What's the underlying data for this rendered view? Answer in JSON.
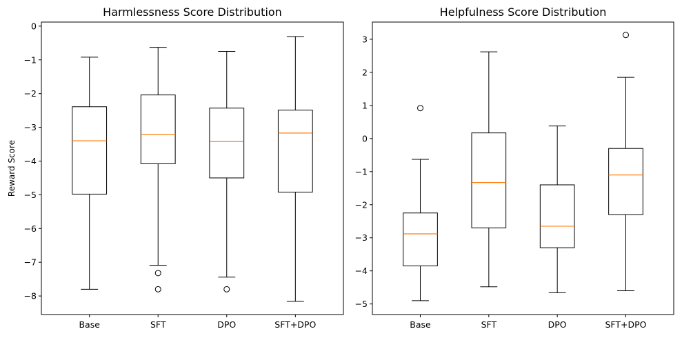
{
  "chart_data": [
    {
      "type": "box",
      "title": "Harmlessness Score Distribution",
      "xlabel": "",
      "ylabel": "Reward Score",
      "ylim": [
        -8.55,
        0.12
      ],
      "yticks": [
        0,
        -1,
        -2,
        -3,
        -4,
        -5,
        -6,
        -7,
        -8
      ],
      "ytick_labels": [
        "0",
        "−1",
        "−2",
        "−3",
        "−4",
        "−5",
        "−6",
        "−7",
        "−8"
      ],
      "categories": [
        "Base",
        "SFT",
        "DPO",
        "SFT+DPO"
      ],
      "boxes": [
        {
          "whisker_low": -7.8,
          "q1": -4.98,
          "median": -3.4,
          "q3": -2.39,
          "whisker_high": -0.92,
          "outliers": []
        },
        {
          "whisker_low": -7.09,
          "q1": -4.08,
          "median": -3.21,
          "q3": -2.04,
          "whisker_high": -0.63,
          "outliers": [
            -7.32,
            -7.8
          ]
        },
        {
          "whisker_low": -7.44,
          "q1": -4.5,
          "median": -3.42,
          "q3": -2.43,
          "whisker_high": -0.75,
          "outliers": [
            -7.8
          ]
        },
        {
          "whisker_low": -8.16,
          "q1": -4.92,
          "median": -3.17,
          "q3": -2.49,
          "whisker_high": -0.31,
          "outliers": []
        }
      ],
      "grid": false
    },
    {
      "type": "box",
      "title": "Helpfulness Score Distribution",
      "xlabel": "",
      "ylabel": "",
      "ylim": [
        -5.32,
        3.52
      ],
      "yticks": [
        3,
        2,
        1,
        0,
        -1,
        -2,
        -3,
        -4,
        -5
      ],
      "ytick_labels": [
        "3",
        "2",
        "1",
        "0",
        "−1",
        "−2",
        "−3",
        "−4",
        "−5"
      ],
      "categories": [
        "Base",
        "SFT",
        "DPO",
        "SFT+DPO"
      ],
      "boxes": [
        {
          "whisker_low": -4.9,
          "q1": -3.85,
          "median": -2.88,
          "q3": -2.25,
          "whisker_high": -0.63,
          "outliers": [
            0.92
          ]
        },
        {
          "whisker_low": -4.48,
          "q1": -2.7,
          "median": -1.33,
          "q3": 0.17,
          "whisker_high": 2.62,
          "outliers": []
        },
        {
          "whisker_low": -4.66,
          "q1": -3.3,
          "median": -2.65,
          "q3": -1.4,
          "whisker_high": 0.38,
          "outliers": []
        },
        {
          "whisker_low": -4.6,
          "q1": -2.3,
          "median": -1.1,
          "q3": -0.3,
          "whisker_high": 1.85,
          "outliers": [
            3.13
          ]
        }
      ],
      "grid": false
    }
  ],
  "colors": {
    "median": "#ff7f0e",
    "box": "#000000",
    "background": "#ffffff"
  }
}
